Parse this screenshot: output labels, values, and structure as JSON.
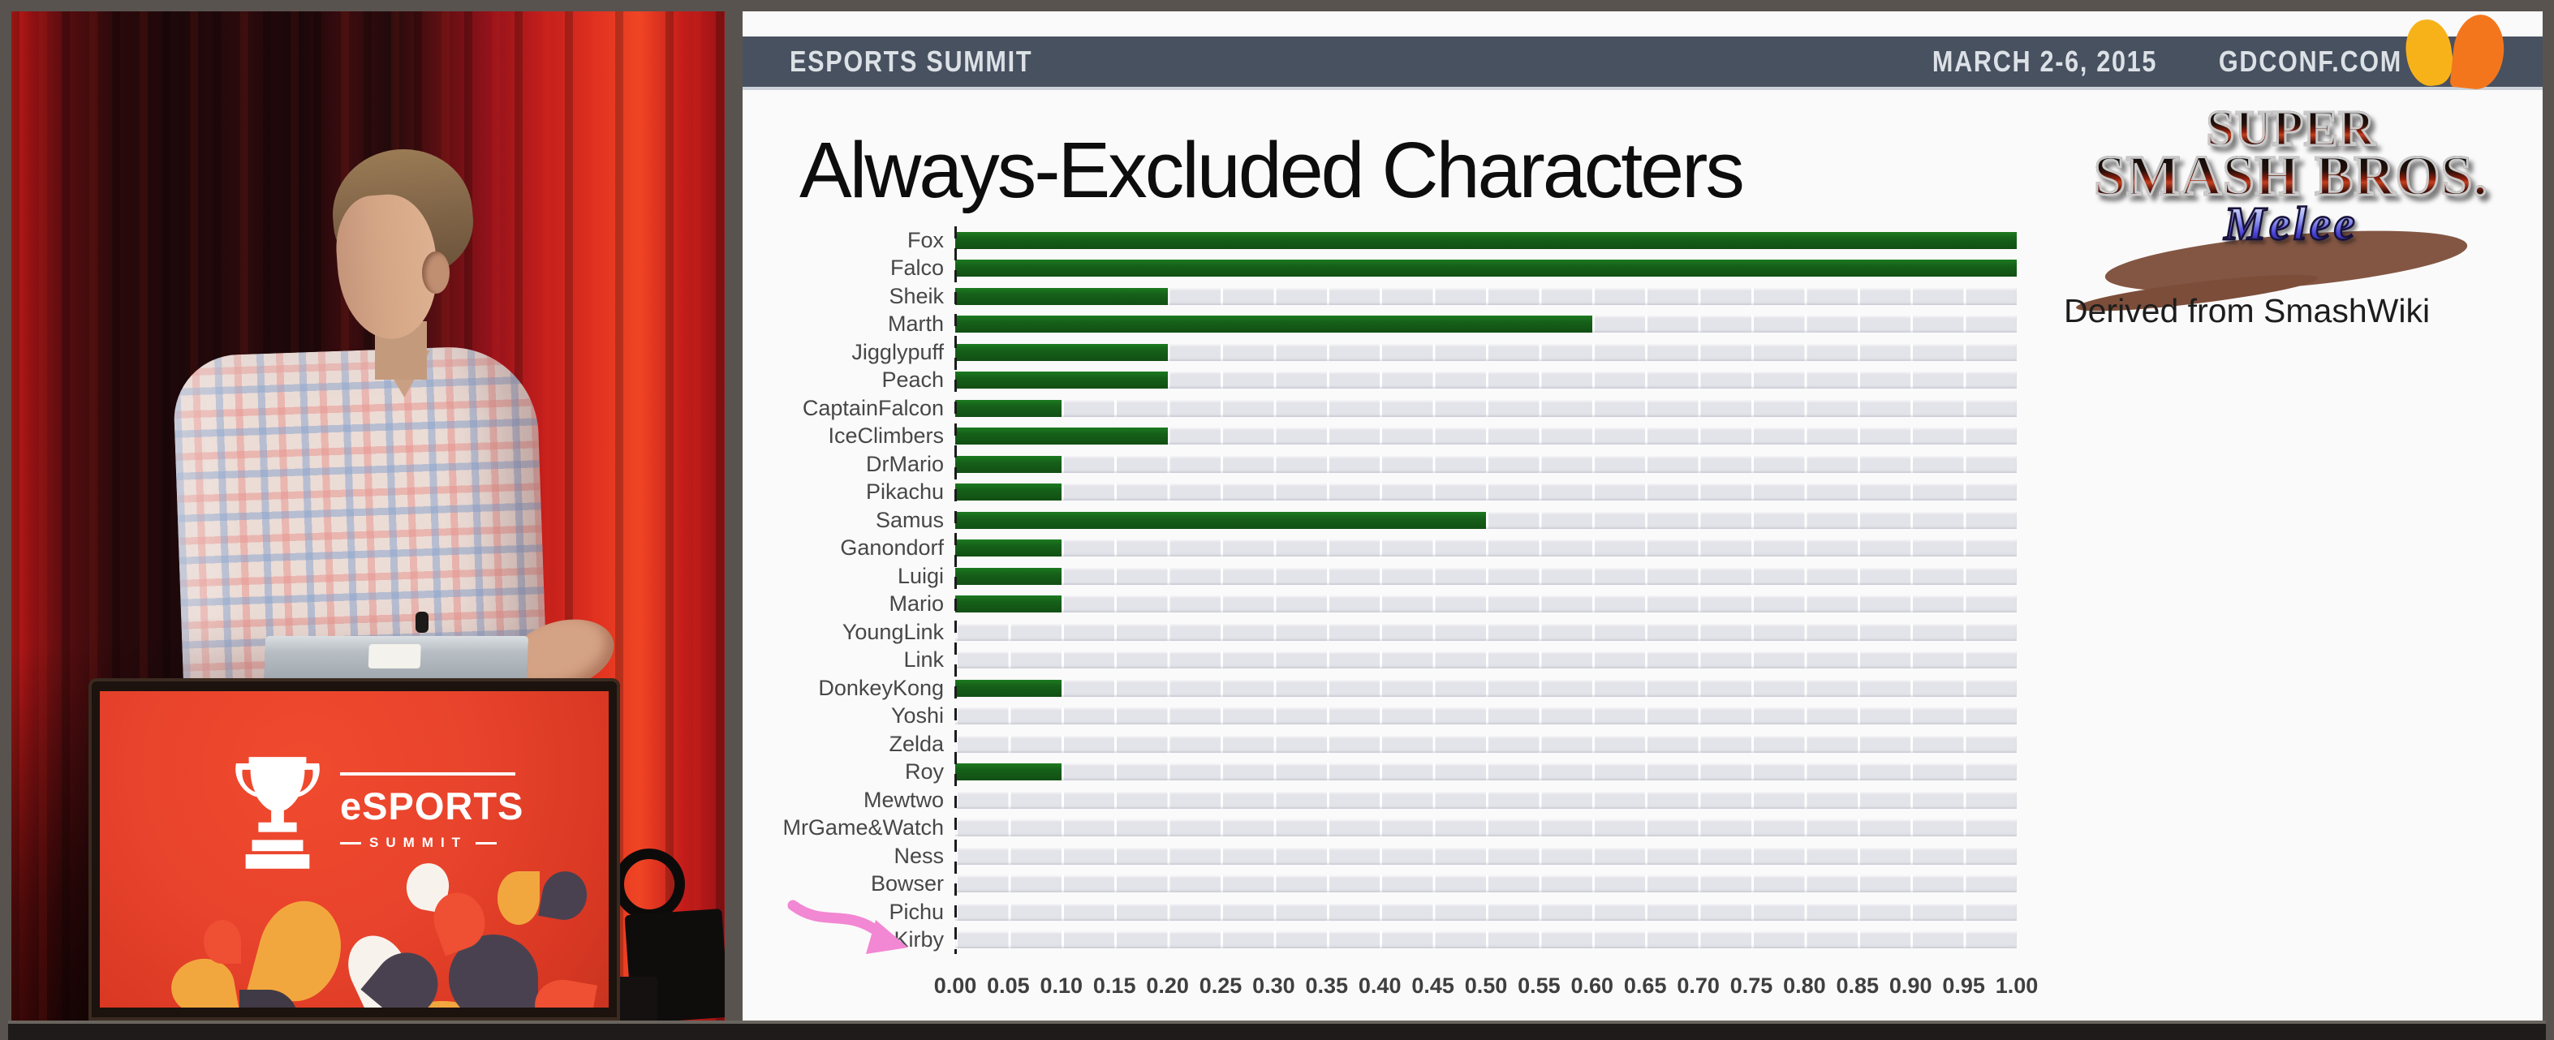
{
  "photo": {
    "podium": {
      "brand": "eSPORTS",
      "brand_sub": "SUMMIT"
    }
  },
  "slide": {
    "header": {
      "left_text": "ESPORTS SUMMIT",
      "date_text": "MARCH 2-6, 2015",
      "site_text": "GDCONF.COM"
    },
    "title": "Always-Excluded Characters",
    "game_logo": {
      "line1": "SUPER",
      "line2": "SMASH BROS.",
      "line3": "Melee"
    },
    "source_note": "Derived from SmashWiki"
  },
  "icons": {
    "gdc_logo": "gdc-petals-logo",
    "trophy": "trophy-icon",
    "annotation_arrow": "pink-hand-drawn-arrow"
  },
  "colors": {
    "header_bar": "#475160",
    "bar_green": "#16611a",
    "track_gray": "#e3e3ea",
    "accent_pink": "#f287d3",
    "podium_red": "#e8432c",
    "gdc_yellow": "#f8b219",
    "gdc_orange": "#f4761c"
  },
  "chart_data": {
    "type": "bar",
    "orientation": "horizontal",
    "title": "Always-Excluded Characters",
    "categories": [
      "Fox",
      "Falco",
      "Sheik",
      "Marth",
      "Jigglypuff",
      "Peach",
      "CaptainFalcon",
      "IceClimbers",
      "DrMario",
      "Pikachu",
      "Samus",
      "Ganondorf",
      "Luigi",
      "Mario",
      "YoungLink",
      "Link",
      "DonkeyKong",
      "Yoshi",
      "Zelda",
      "Roy",
      "Mewtwo",
      "MrGame&Watch",
      "Ness",
      "Bowser",
      "Pichu",
      "Kirby"
    ],
    "values": [
      1.0,
      1.0,
      0.2,
      0.6,
      0.2,
      0.2,
      0.1,
      0.2,
      0.1,
      0.1,
      0.5,
      0.1,
      0.1,
      0.1,
      0.0,
      0.0,
      0.1,
      0.0,
      0.0,
      0.1,
      0.0,
      0.0,
      0.0,
      0.0,
      0.0,
      0.0
    ],
    "xlim": [
      0.0,
      1.0
    ],
    "x_ticks": [
      0.0,
      0.05,
      0.1,
      0.15,
      0.2,
      0.25,
      0.3,
      0.35,
      0.4,
      0.45,
      0.5,
      0.55,
      0.6,
      0.65,
      0.7,
      0.75,
      0.8,
      0.85,
      0.9,
      0.95,
      1.0
    ],
    "grid": "vertical-light",
    "legend": "none",
    "source": "Derived from SmashWiki",
    "annotation": {
      "target": "Kirby",
      "type": "hand-drawn-arrow",
      "color": "#f287d3"
    }
  }
}
